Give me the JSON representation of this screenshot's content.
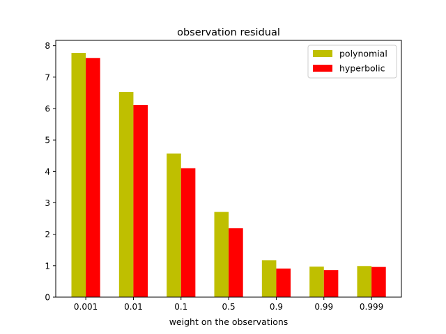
{
  "chart_data": {
    "type": "bar",
    "title": "observation residual",
    "xlabel": "weight on the observations",
    "ylabel": "",
    "categories": [
      "0.001",
      "0.01",
      "0.1",
      "0.5",
      "0.9",
      "0.99",
      "0.999"
    ],
    "series": [
      {
        "name": "polynomial",
        "color": "#bfbf00",
        "values": [
          7.77,
          6.53,
          4.57,
          2.71,
          1.17,
          0.97,
          0.99
        ]
      },
      {
        "name": "hyperbolic",
        "color": "#ff0000",
        "values": [
          7.61,
          6.11,
          4.1,
          2.19,
          0.91,
          0.86,
          0.96
        ]
      }
    ],
    "ylim": [
      0,
      8.17
    ],
    "yticks": [
      0,
      1,
      2,
      3,
      4,
      5,
      6,
      7,
      8
    ],
    "grid": false,
    "legend_position": "top-right"
  }
}
